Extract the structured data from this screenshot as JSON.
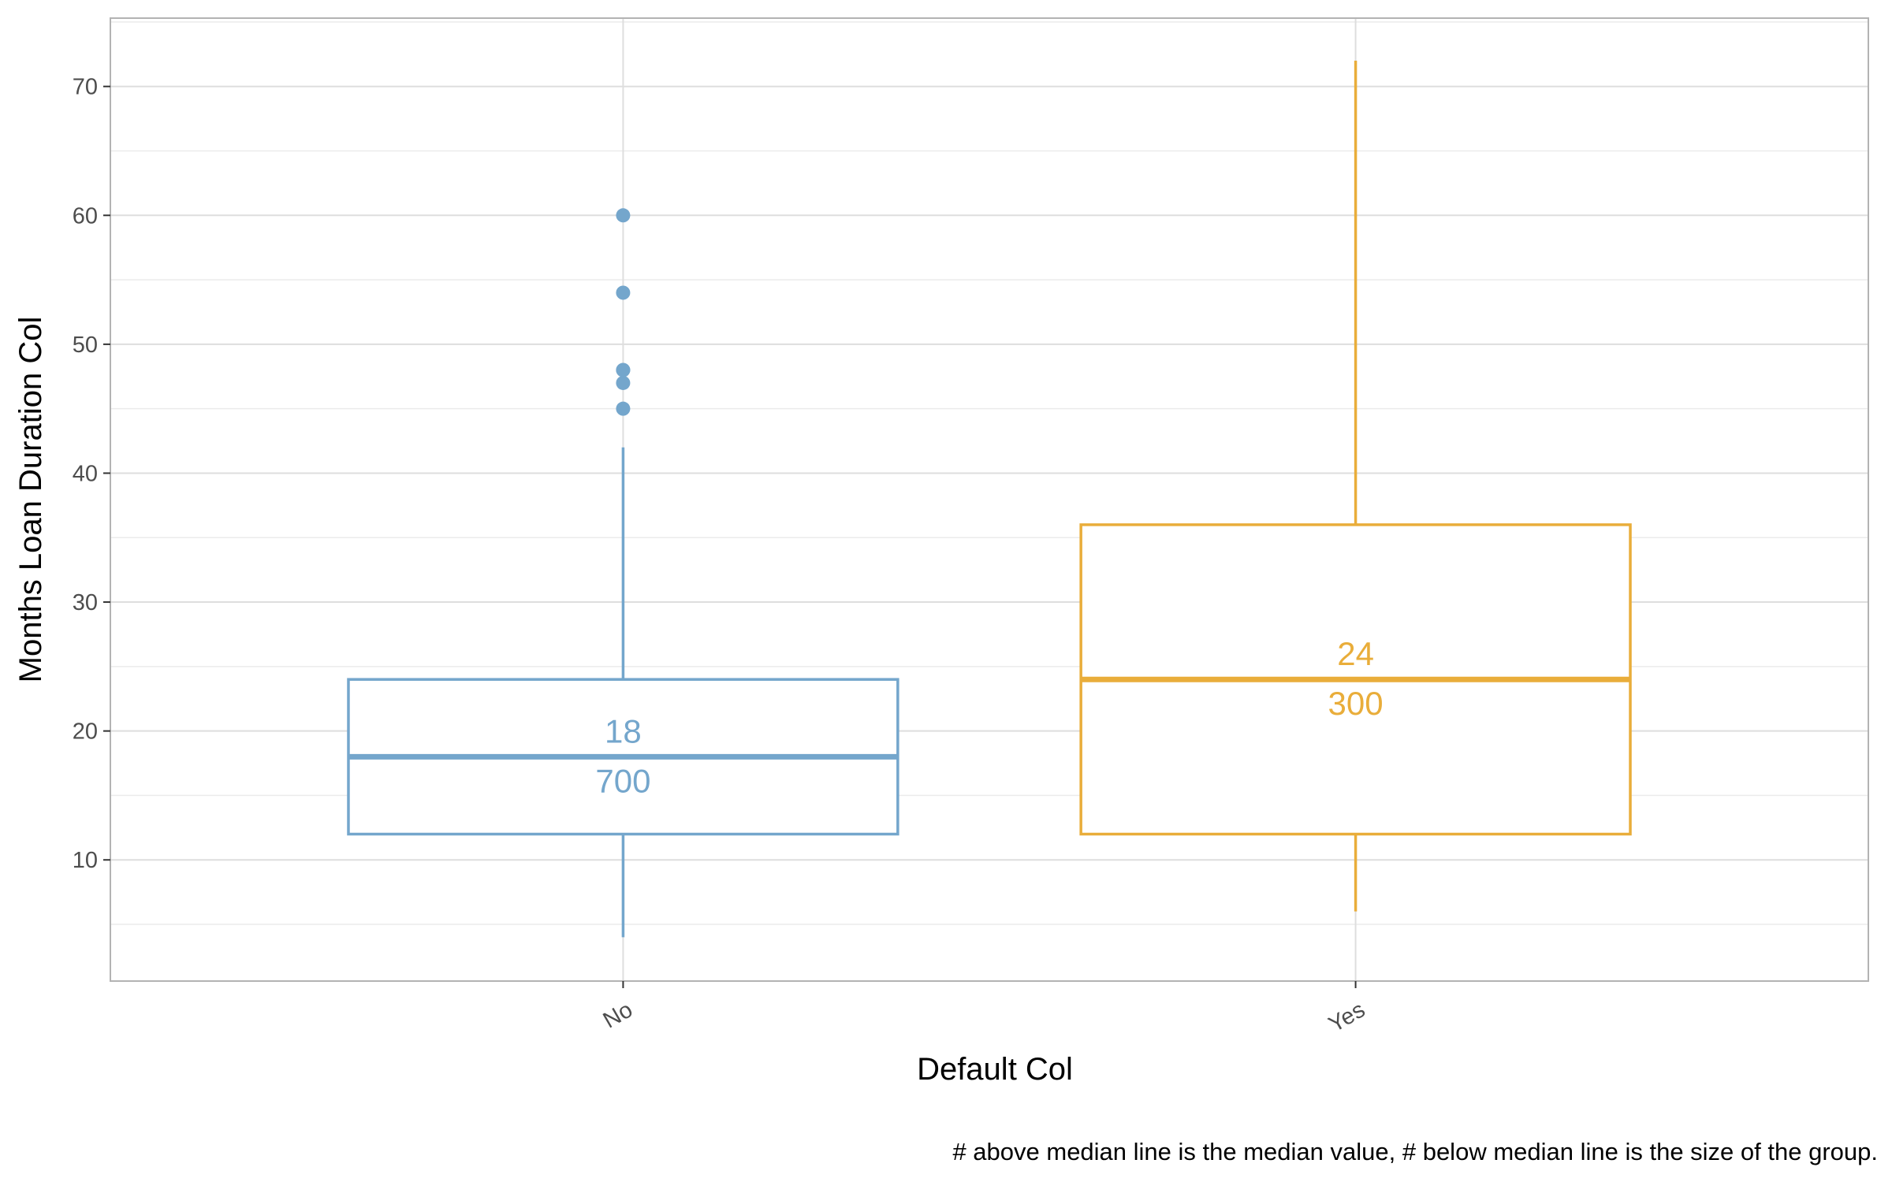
{
  "chart_data": {
    "type": "box",
    "xlabel": "Default Col",
    "ylabel": "Months Loan Duration Col",
    "caption": "# above median line is the median value, # below median line is the size of the group.",
    "categories": [
      "No",
      "Yes"
    ],
    "ylim": [
      0.6,
      75.3
    ],
    "y_ticks": [
      10,
      20,
      30,
      40,
      50,
      60,
      70
    ],
    "grid": true,
    "legend": "none",
    "boxes": [
      {
        "category": "No",
        "color": "#74a6cc",
        "whisker_low": 4,
        "q1": 12,
        "median": 18,
        "q3": 24,
        "whisker_high": 42,
        "outliers": [
          45,
          47,
          48,
          48,
          54,
          60
        ],
        "median_label": "18",
        "count_label": "700"
      },
      {
        "category": "Yes",
        "color": "#e9ad3a",
        "whisker_low": 6,
        "q1": 12,
        "median": 24,
        "q3": 36,
        "whisker_high": 72,
        "outliers": [],
        "median_label": "24",
        "count_label": "300"
      }
    ]
  }
}
